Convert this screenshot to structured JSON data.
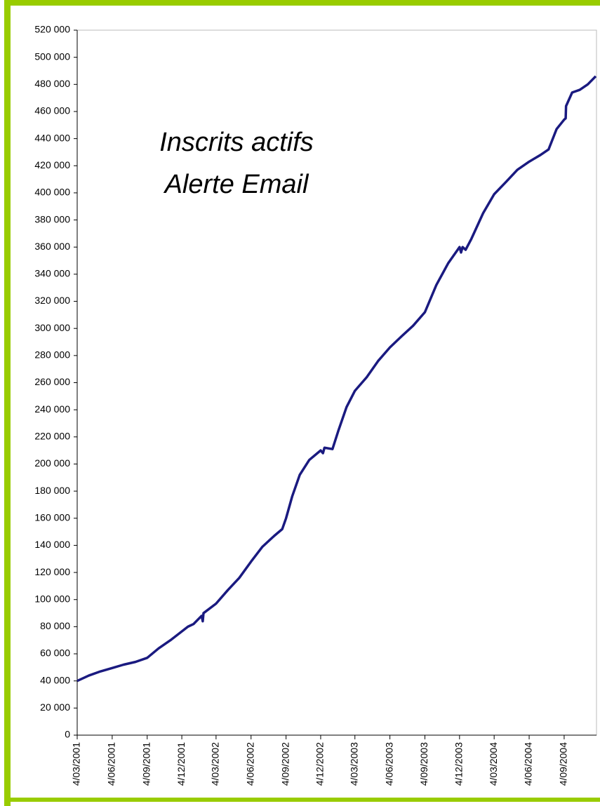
{
  "chart_data": {
    "type": "line",
    "title": [
      "Inscrits actifs",
      "Alerte Email"
    ],
    "x": [
      "2001-03-04",
      "2001-04-04",
      "2001-05-04",
      "2001-06-04",
      "2001-07-04",
      "2001-08-04",
      "2001-09-04",
      "2001-10-04",
      "2001-11-04",
      "2001-12-04",
      "2001-12-20",
      "2002-01-04",
      "2002-01-25",
      "2002-01-28",
      "2002-01-30",
      "2002-03-04",
      "2002-04-04",
      "2002-05-04",
      "2002-06-04",
      "2002-07-04",
      "2002-08-04",
      "2002-08-25",
      "2002-09-04",
      "2002-09-20",
      "2002-10-10",
      "2002-11-04",
      "2002-12-04",
      "2002-12-10",
      "2002-12-14",
      "2003-01-04",
      "2003-01-20",
      "2003-02-10",
      "2003-03-04",
      "2003-04-04",
      "2003-05-04",
      "2003-06-04",
      "2003-07-04",
      "2003-08-04",
      "2003-09-04",
      "2003-10-04",
      "2003-11-04",
      "2003-12-04",
      "2003-12-08",
      "2003-12-12",
      "2003-12-20",
      "2004-01-04",
      "2004-02-04",
      "2004-03-04",
      "2004-04-04",
      "2004-05-04",
      "2004-06-04",
      "2004-07-04",
      "2004-07-25",
      "2004-08-15",
      "2004-09-04",
      "2004-09-08",
      "2004-09-09",
      "2004-09-25",
      "2004-10-15",
      "2004-11-05",
      "2004-11-26"
    ],
    "series": [
      {
        "name": "Inscrits actifs",
        "color": "#1a1a80",
        "values": [
          40000,
          44000,
          47000,
          49500,
          52000,
          54000,
          57000,
          64000,
          70000,
          76500,
          80000,
          82000,
          88000,
          84000,
          90000,
          97000,
          107000,
          116000,
          128000,
          139000,
          147000,
          152000,
          160000,
          176000,
          192000,
          203000,
          210000,
          208000,
          212000,
          211000,
          225000,
          242000,
          254000,
          264000,
          276000,
          286000,
          294000,
          302000,
          312000,
          332000,
          348000,
          360000,
          356000,
          360000,
          358000,
          366000,
          385000,
          399000,
          408000,
          417000,
          423000,
          428000,
          432000,
          447000,
          454000,
          455000,
          464000,
          474000,
          476000,
          480000,
          486000
        ]
      }
    ],
    "xlim": [
      "2001-03-04",
      "2004-11-28"
    ],
    "xticks": [
      {
        "value": "2001-03-04",
        "label": "4/03/2001"
      },
      {
        "value": "2001-06-04",
        "label": "4/06/2001"
      },
      {
        "value": "2001-09-04",
        "label": "4/09/2001"
      },
      {
        "value": "2001-12-04",
        "label": "4/12/2001"
      },
      {
        "value": "2002-03-04",
        "label": "4/03/2002"
      },
      {
        "value": "2002-06-04",
        "label": "4/06/2002"
      },
      {
        "value": "2002-09-04",
        "label": "4/09/2002"
      },
      {
        "value": "2002-12-04",
        "label": "4/12/2002"
      },
      {
        "value": "2003-03-04",
        "label": "4/03/2003"
      },
      {
        "value": "2003-06-04",
        "label": "4/06/2003"
      },
      {
        "value": "2003-09-04",
        "label": "4/09/2003"
      },
      {
        "value": "2003-12-04",
        "label": "4/12/2003"
      },
      {
        "value": "2004-03-04",
        "label": "4/03/2004"
      },
      {
        "value": "2004-06-04",
        "label": "4/06/2004"
      },
      {
        "value": "2004-09-04",
        "label": "4/09/2004"
      }
    ],
    "ylim": [
      0,
      520000
    ],
    "yticks": [
      0,
      {
        "value": 20000,
        "label": "20 000"
      },
      {
        "value": 40000,
        "label": "40 000"
      },
      {
        "value": 60000,
        "label": "60 000"
      },
      {
        "value": 80000,
        "label": "80 000"
      },
      {
        "value": 100000,
        "label": "100 000"
      },
      {
        "value": 120000,
        "label": "120 000"
      },
      {
        "value": 140000,
        "label": "140 000"
      },
      {
        "value": 160000,
        "label": "160 000"
      },
      {
        "value": 180000,
        "label": "180 000"
      },
      {
        "value": 200000,
        "label": "200 000"
      },
      {
        "value": 220000,
        "label": "220 000"
      },
      {
        "value": 240000,
        "label": "240 000"
      },
      {
        "value": 260000,
        "label": "260 000"
      },
      {
        "value": 280000,
        "label": "280 000"
      },
      {
        "value": 300000,
        "label": "300 000"
      },
      {
        "value": 320000,
        "label": "320 000"
      },
      {
        "value": 340000,
        "label": "340 000"
      },
      {
        "value": 360000,
        "label": "360 000"
      },
      {
        "value": 380000,
        "label": "380 000"
      },
      {
        "value": 400000,
        "label": "400 000"
      },
      {
        "value": 420000,
        "label": "420 000"
      },
      {
        "value": 440000,
        "label": "440 000"
      },
      {
        "value": 460000,
        "label": "460 000"
      },
      {
        "value": 480000,
        "label": "480 000"
      },
      {
        "value": 500000,
        "label": "500 000"
      },
      {
        "value": 520000,
        "label": "520 000"
      }
    ],
    "grid": false
  }
}
